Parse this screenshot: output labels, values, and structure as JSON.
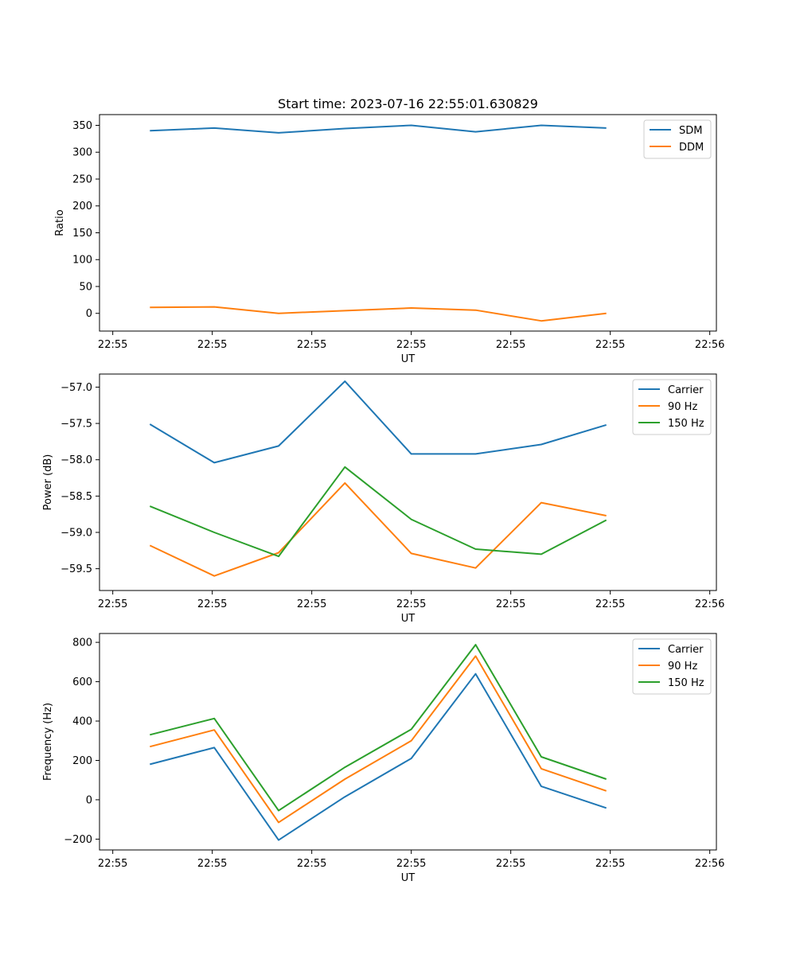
{
  "chart_data": [
    {
      "type": "line",
      "title": "Start time: 2023-07-16 22:55:01.630829",
      "xlabel": "UT",
      "ylabel": "Ratio",
      "x_ticks": [
        "22:55",
        "22:55",
        "22:55",
        "22:55",
        "22:55",
        "22:55",
        "22:56"
      ],
      "xlim": [
        -0.2,
        9.1
      ],
      "x": [
        0.56,
        1.53,
        2.5,
        3.5,
        4.5,
        5.47,
        6.46,
        7.44
      ],
      "ylim": [
        -33,
        370
      ],
      "y_ticks": [
        0,
        50,
        100,
        150,
        200,
        250,
        300,
        350
      ],
      "legend_position": "top-right",
      "series": [
        {
          "name": "SDM",
          "color": "#1f77b4",
          "values": [
            340,
            345,
            336,
            344,
            350,
            338,
            350,
            345
          ]
        },
        {
          "name": "DDM",
          "color": "#ff7f0e",
          "values": [
            11,
            12,
            0,
            5,
            10,
            6,
            -14,
            0
          ]
        }
      ]
    },
    {
      "type": "line",
      "title": "",
      "xlabel": "UT",
      "ylabel": "Power (dB)",
      "x_ticks": [
        "22:55",
        "22:55",
        "22:55",
        "22:55",
        "22:55",
        "22:55",
        "22:56"
      ],
      "xlim": [
        -0.2,
        9.1
      ],
      "x": [
        0.56,
        1.53,
        2.5,
        3.5,
        4.5,
        5.47,
        6.46,
        7.44
      ],
      "ylim": [
        -59.8,
        -56.82
      ],
      "y_ticks": [
        -57.0,
        -57.5,
        -58.0,
        -58.5,
        -59.0,
        -59.5
      ],
      "y_tick_labels": [
        "−57.0",
        "−57.5",
        "−58.0",
        "−58.5",
        "−59.0",
        "−59.5"
      ],
      "legend_position": "top-right",
      "series": [
        {
          "name": "Carrier",
          "color": "#1f77b4",
          "values": [
            -57.51,
            -58.04,
            -57.81,
            -56.92,
            -57.92,
            -57.92,
            -57.79,
            -57.52
          ]
        },
        {
          "name": "90 Hz",
          "color": "#ff7f0e",
          "values": [
            -59.18,
            -59.6,
            -59.28,
            -58.32,
            -59.29,
            -59.49,
            -58.59,
            -58.77
          ]
        },
        {
          "name": "150 Hz",
          "color": "#2ca02c",
          "values": [
            -58.64,
            -59.0,
            -59.33,
            -58.1,
            -58.82,
            -59.23,
            -59.3,
            -58.83
          ]
        }
      ]
    },
    {
      "type": "line",
      "title": "",
      "xlabel": "UT",
      "ylabel": "Frequency (Hz)",
      "x_ticks": [
        "22:55",
        "22:55",
        "22:55",
        "22:55",
        "22:55",
        "22:55",
        "22:56"
      ],
      "xlim": [
        -0.2,
        9.1
      ],
      "x": [
        0.56,
        1.53,
        2.5,
        3.5,
        4.5,
        5.47,
        6.46,
        7.44
      ],
      "ylim": [
        -255,
        845
      ],
      "y_ticks": [
        -200,
        0,
        200,
        400,
        600,
        800
      ],
      "y_tick_labels": [
        "−200",
        "0",
        "200",
        "400",
        "600",
        "800"
      ],
      "legend_position": "top-right",
      "series": [
        {
          "name": "Carrier",
          "color": "#1f77b4",
          "values": [
            180,
            265,
            -205,
            15,
            210,
            640,
            68,
            -42
          ]
        },
        {
          "name": "90 Hz",
          "color": "#ff7f0e",
          "values": [
            270,
            355,
            -115,
            105,
            300,
            730,
            158,
            45
          ]
        },
        {
          "name": "150 Hz",
          "color": "#2ca02c",
          "values": [
            330,
            413,
            -55,
            165,
            358,
            788,
            218,
            105
          ]
        }
      ]
    }
  ]
}
